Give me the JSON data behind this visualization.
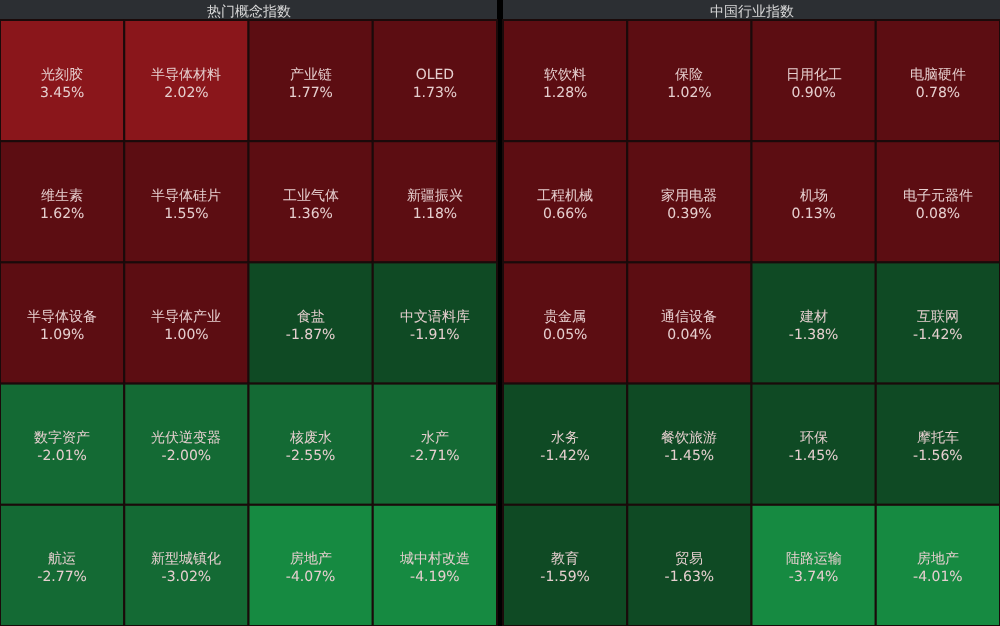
{
  "chart_data": [
    {
      "type": "other",
      "title": "热门概念指数",
      "categories": [
        "光刻胶",
        "半导体材料",
        "产业链",
        "OLED",
        "维生素",
        "半导体硅片",
        "工业气体",
        "新疆振兴",
        "半导体设备",
        "半导体产业",
        "食盐",
        "中文语料库",
        "数字资产",
        "光伏逆变器",
        "核废水",
        "水产",
        "航运",
        "新型城镇化",
        "房地产",
        "城中村改造"
      ],
      "values": [
        3.45,
        2.02,
        1.77,
        1.73,
        1.62,
        1.55,
        1.36,
        1.18,
        1.09,
        1.0,
        -1.87,
        -1.91,
        -2.01,
        -2.0,
        -2.55,
        -2.71,
        -2.77,
        -3.02,
        -4.07,
        -4.19
      ],
      "value_labels": [
        "3.45%",
        "2.02%",
        "1.77%",
        "1.73%",
        "1.62%",
        "1.55%",
        "1.36%",
        "1.18%",
        "1.09%",
        "1.00%",
        "-1.87%",
        "-1.91%",
        "-2.01%",
        "-2.00%",
        "-2.55%",
        "-2.71%",
        "-2.77%",
        "-3.02%",
        "-4.07%",
        "-4.19%"
      ]
    },
    {
      "type": "other",
      "title": "中国行业指数",
      "categories": [
        "软饮料",
        "保险",
        "日用化工",
        "电脑硬件",
        "工程机械",
        "家用电器",
        "机场",
        "电子元器件",
        "贵金属",
        "通信设备",
        "建材",
        "互联网",
        "水务",
        "餐饮旅游",
        "环保",
        "摩托车",
        "教育",
        "贸易",
        "陆路运输",
        "房地产"
      ],
      "values": [
        1.28,
        1.02,
        0.9,
        0.78,
        0.66,
        0.39,
        0.13,
        0.08,
        0.05,
        0.04,
        -1.38,
        -1.42,
        -1.42,
        -1.45,
        -1.45,
        -1.56,
        -1.59,
        -1.63,
        -3.74,
        -4.01
      ],
      "value_labels": [
        "1.28%",
        "1.02%",
        "0.90%",
        "0.78%",
        "0.66%",
        "0.39%",
        "0.13%",
        "0.08%",
        "0.05%",
        "0.04%",
        "-1.38%",
        "-1.42%",
        "-1.42%",
        "-1.45%",
        "-1.45%",
        "-1.56%",
        "-1.59%",
        "-1.63%",
        "-3.74%",
        "-4.01%"
      ]
    }
  ]
}
